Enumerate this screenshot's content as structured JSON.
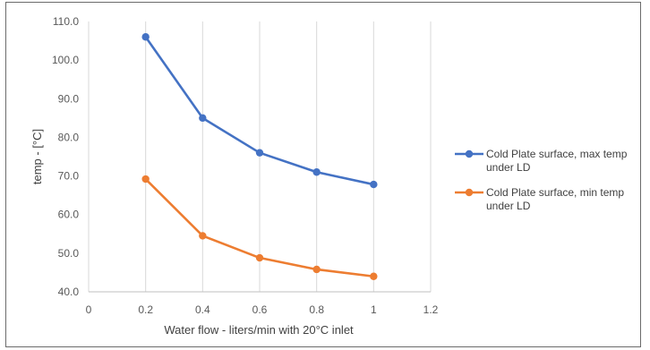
{
  "chart_data": {
    "type": "line",
    "title": "",
    "xlabel": "Water flow - liters/min with 20°C inlet",
    "ylabel": "temp - [°C]",
    "xlim": [
      0,
      1.2
    ],
    "ylim": [
      40,
      110
    ],
    "x_ticks": [
      "0",
      "0.2",
      "0.4",
      "0.6",
      "0.8",
      "1",
      "1.2"
    ],
    "y_ticks": [
      "40.0",
      "50.0",
      "60.0",
      "70.0",
      "80.0",
      "90.0",
      "100.0",
      "110.0"
    ],
    "grid": "vertical",
    "legend_position": "right",
    "series": [
      {
        "name_lines": [
          "Cold Plate surface, max temp",
          "under LD"
        ],
        "color": "#4472C4",
        "x": [
          0.2,
          0.4,
          0.6,
          0.8,
          1.0
        ],
        "y": [
          106.0,
          85.0,
          76.0,
          71.0,
          67.8
        ]
      },
      {
        "name_lines": [
          "Cold Plate surface, min temp",
          "under LD"
        ],
        "color": "#ED7D31",
        "x": [
          0.2,
          0.4,
          0.6,
          0.8,
          1.0
        ],
        "y": [
          69.2,
          54.5,
          48.8,
          45.8,
          44.0
        ]
      }
    ]
  }
}
